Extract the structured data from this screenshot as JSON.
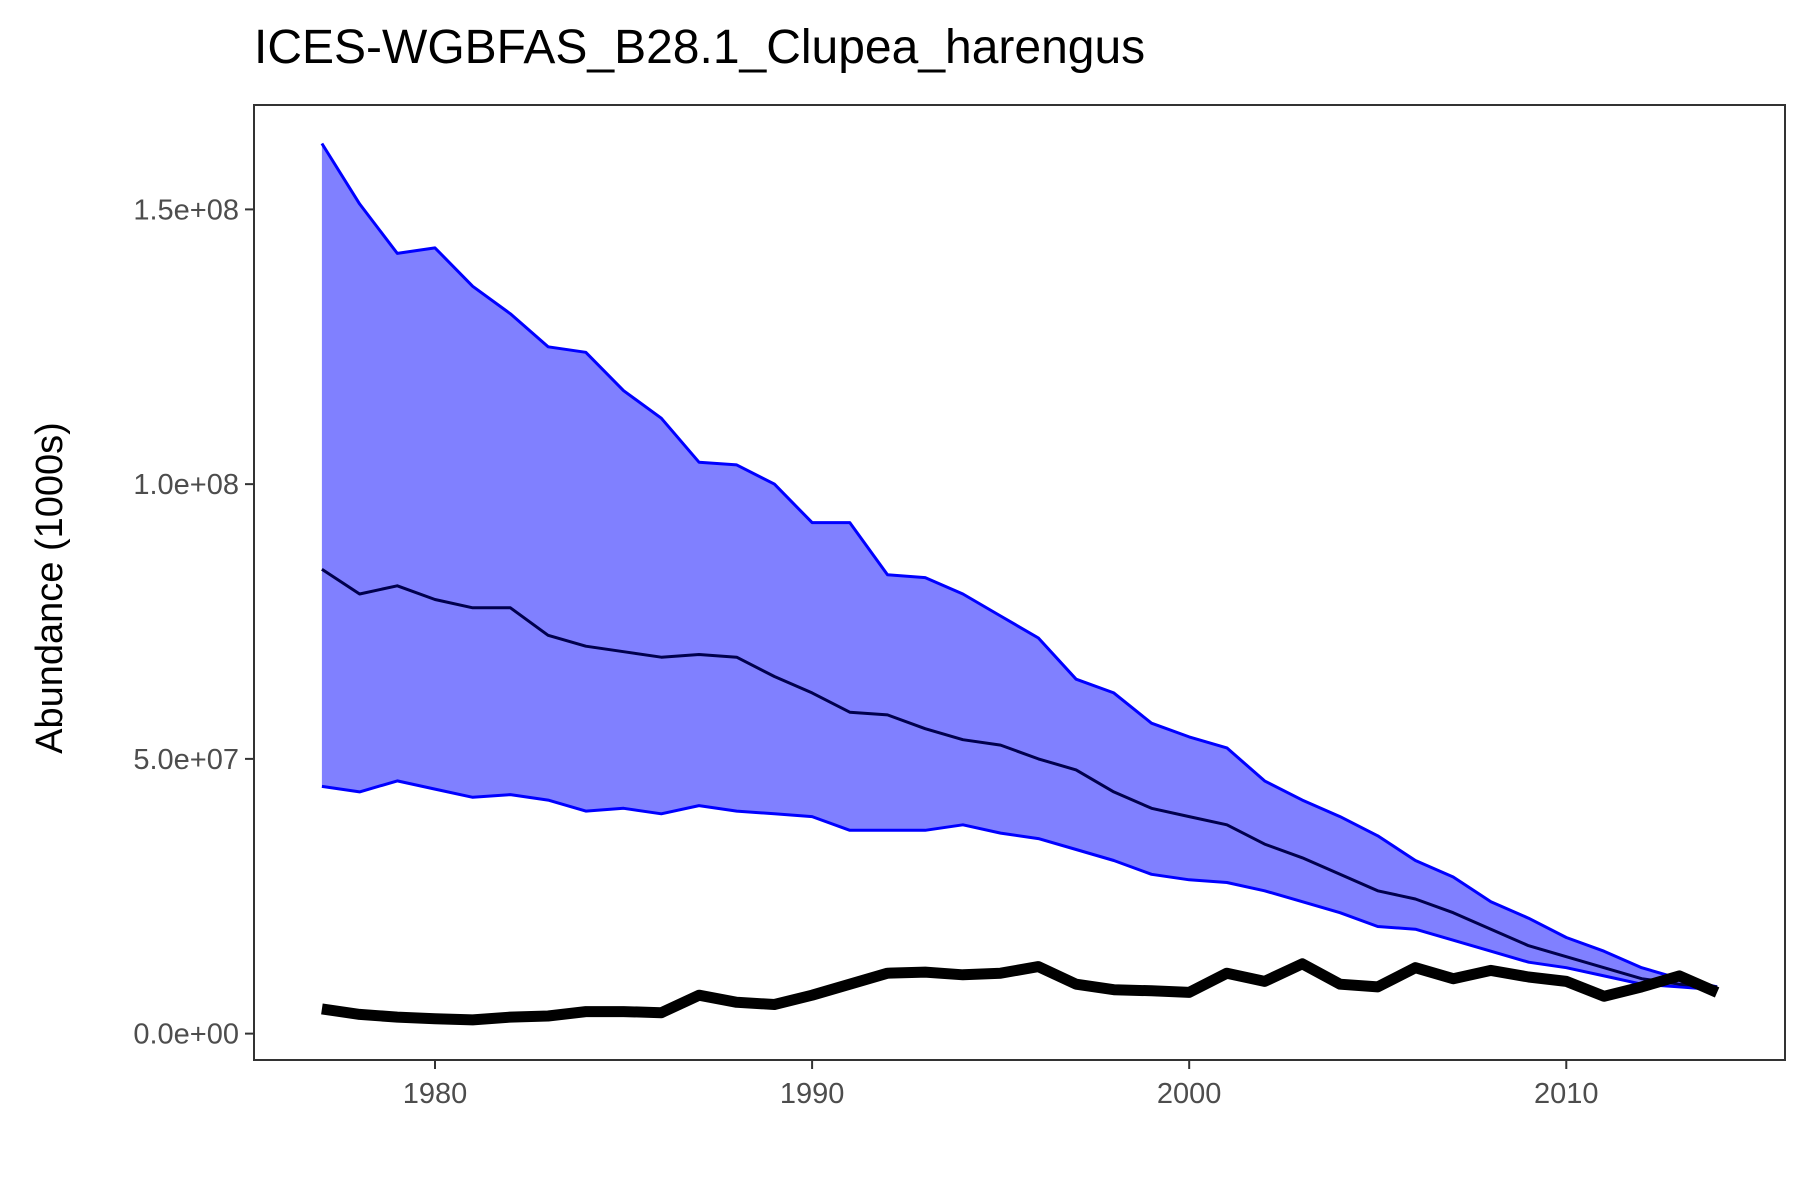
{
  "chart_data": {
    "type": "line",
    "title": "ICES-WGBFAS_B28.1_Clupea_harengus",
    "xlabel": "",
    "ylabel": "Abundance (1000s)",
    "xlim": [
      1975.2,
      2015.8
    ],
    "ylim": [
      -4800000,
      169000000
    ],
    "x_ticks": [
      1980,
      1990,
      2000,
      2010
    ],
    "x_tick_labels": [
      "1980",
      "1990",
      "2000",
      "2010"
    ],
    "y_ticks": [
      0,
      50000000,
      100000000,
      150000000
    ],
    "y_tick_labels": [
      "0.0e+00",
      "5.0e+07",
      "1.0e+08",
      "1.5e+08"
    ],
    "grid": false,
    "colors": {
      "band_fill": "#8080ff",
      "band_edge": "#0000ff",
      "median_line": "#00004d",
      "observed_line": "#000000",
      "panel_border": "#333333",
      "tick_text": "#4d4d4d"
    },
    "x": [
      1977,
      1978,
      1979,
      1980,
      1981,
      1982,
      1983,
      1984,
      1985,
      1986,
      1987,
      1988,
      1989,
      1990,
      1991,
      1992,
      1993,
      1994,
      1995,
      1996,
      1997,
      1998,
      1999,
      2000,
      2001,
      2002,
      2003,
      2004,
      2005,
      2006,
      2007,
      2008,
      2009,
      2010,
      2011,
      2012,
      2013,
      2014
    ],
    "series": [
      {
        "role": "upper",
        "values": [
          162000000,
          151000000,
          142000000,
          143000000,
          136000000,
          131000000,
          125000000,
          124000000,
          117000000,
          112000000,
          104000000,
          103500000,
          100000000,
          93000000,
          93000000,
          83500000,
          83000000,
          80000000,
          76000000,
          72000000,
          64500000,
          62000000,
          56500000,
          54000000,
          52000000,
          46000000,
          42500000,
          39500000,
          36000000,
          31500000,
          28500000,
          24000000,
          21000000,
          17500000,
          15000000,
          12000000,
          10000000,
          8500000
        ]
      },
      {
        "role": "median",
        "values": [
          84500000,
          80000000,
          81500000,
          79000000,
          77500000,
          77500000,
          72500000,
          70500000,
          69500000,
          68500000,
          69000000,
          68500000,
          65000000,
          62000000,
          58500000,
          58000000,
          55500000,
          53500000,
          52500000,
          50000000,
          48000000,
          44000000,
          41000000,
          39500000,
          38000000,
          34500000,
          32000000,
          29000000,
          26000000,
          24500000,
          22000000,
          19000000,
          16000000,
          14000000,
          12000000,
          10000000,
          9000000,
          8500000
        ]
      },
      {
        "role": "lower",
        "values": [
          45000000,
          44000000,
          46000000,
          44500000,
          43000000,
          43500000,
          42500000,
          40500000,
          41000000,
          40000000,
          41500000,
          40500000,
          40000000,
          39500000,
          37000000,
          37000000,
          37000000,
          38000000,
          36500000,
          35500000,
          33500000,
          31500000,
          29000000,
          28000000,
          27500000,
          26000000,
          24000000,
          22000000,
          19500000,
          19000000,
          17000000,
          15000000,
          13000000,
          12000000,
          10500000,
          9000000,
          8500000,
          8000000
        ]
      },
      {
        "role": "observed",
        "values": [
          4500000,
          3500000,
          3000000,
          2700000,
          2500000,
          3000000,
          3200000,
          4000000,
          4000000,
          3800000,
          7000000,
          5700000,
          5300000,
          7000000,
          9000000,
          11000000,
          11200000,
          10700000,
          11000000,
          12200000,
          9000000,
          8000000,
          7800000,
          7500000,
          11000000,
          9500000,
          12700000,
          9000000,
          8500000,
          12000000,
          10000000,
          11500000,
          10300000,
          9500000,
          6800000,
          8500000,
          10500000,
          7500000
        ]
      }
    ]
  }
}
